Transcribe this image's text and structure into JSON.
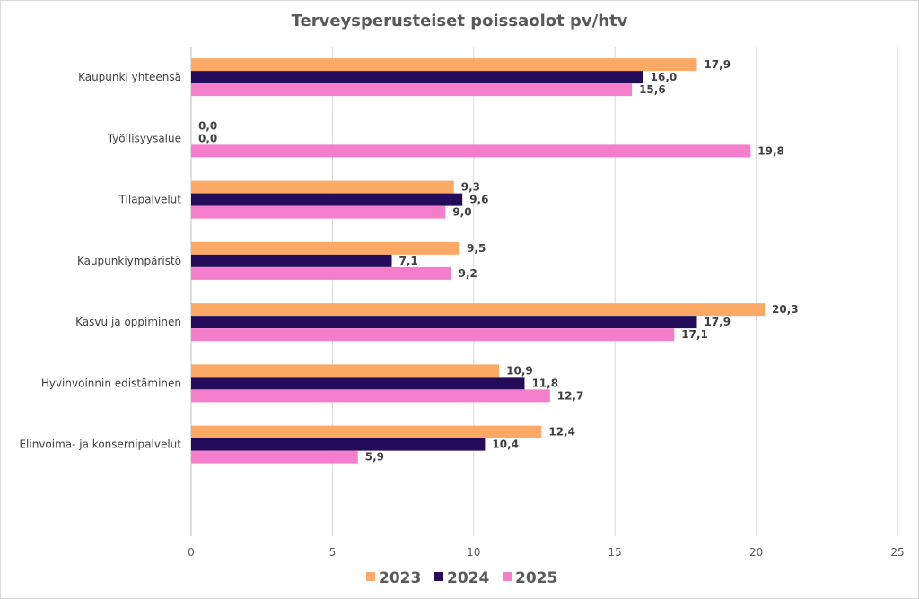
{
  "chart_data": {
    "type": "bar",
    "orientation": "horizontal",
    "title": "Terveysperusteiset poissaolot pv/htv",
    "categories": [
      "Kaupunki yhteensä",
      "Työllisyysalue",
      "Tilapalvelut",
      "Kaupunkiympäristö",
      "Kasvu ja oppiminen",
      "Hyvinvoinnin edistäminen",
      "Elinvoima- ja konsernipalvelut"
    ],
    "series": [
      {
        "name": "2023",
        "color": "#FBA964",
        "values": [
          17.9,
          0.0,
          9.3,
          9.5,
          20.3,
          10.9,
          12.4
        ],
        "labels": [
          "17,9",
          "0,0",
          "9,3",
          "9,5",
          "20,3",
          "10,9",
          "12,4"
        ]
      },
      {
        "name": "2024",
        "color": "#240C5B",
        "values": [
          16.0,
          0.0,
          9.6,
          7.1,
          17.9,
          11.8,
          10.4
        ],
        "labels": [
          "16,0",
          "0,0",
          "9,6",
          "7,1",
          "17,9",
          "11,8",
          "10,4"
        ]
      },
      {
        "name": "2025",
        "color": "#F47ECC",
        "values": [
          15.6,
          19.8,
          9.0,
          9.2,
          17.1,
          12.7,
          5.9
        ],
        "labels": [
          "15,6",
          "19,8",
          "9,0",
          "9,2",
          "17,1",
          "12,7",
          "5,9"
        ]
      }
    ],
    "xlim": [
      0,
      25
    ],
    "xticks": [
      "0",
      "5",
      "10",
      "15",
      "20",
      "25"
    ],
    "xlabel": "",
    "ylabel": "",
    "grid": "vertical",
    "legend": "bottom"
  }
}
